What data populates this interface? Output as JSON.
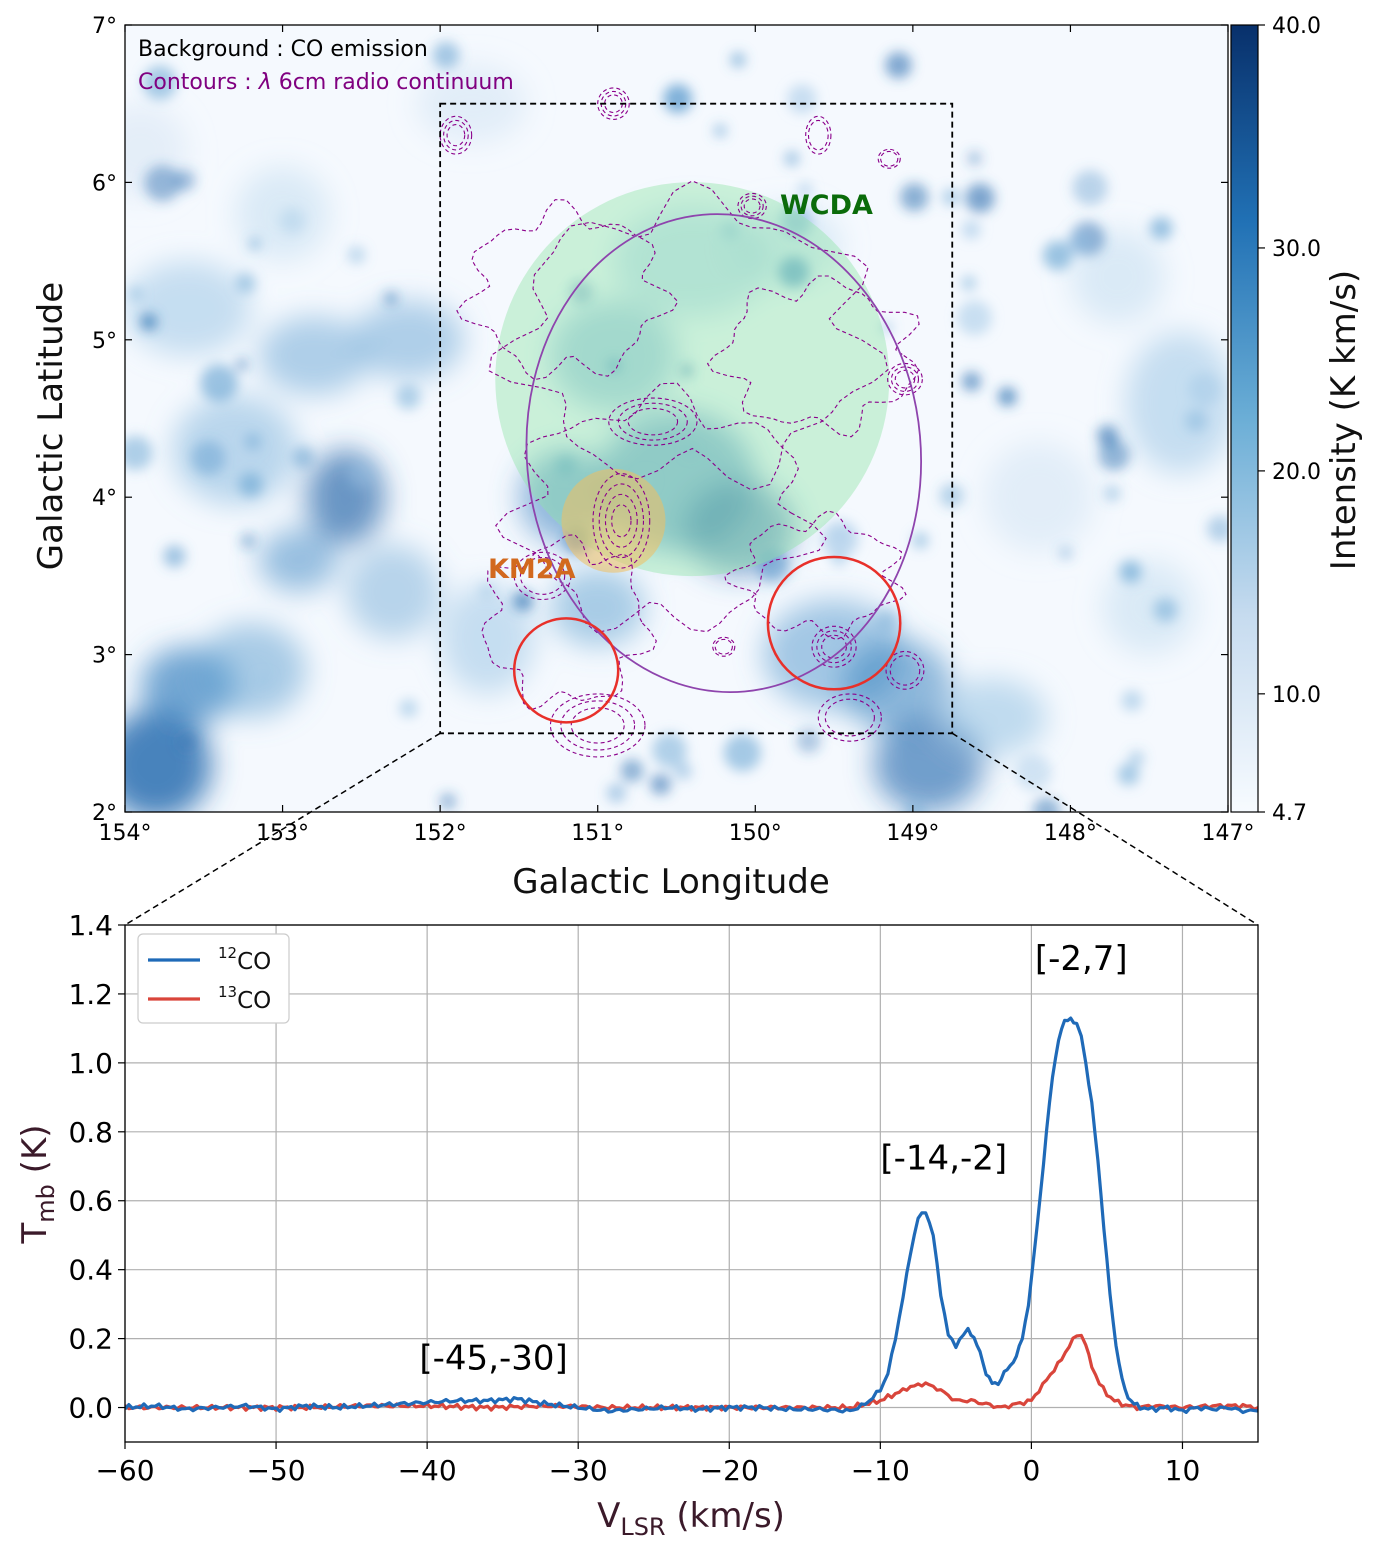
{
  "chart_data": [
    {
      "type": "heatmap",
      "panel": "top",
      "xlabel": "Galactic Longitude",
      "ylabel": "Galactic Latitude",
      "xlim": [
        154,
        147
      ],
      "ylim": [
        2,
        7
      ],
      "x_ticks": [
        154,
        153,
        152,
        151,
        150,
        149,
        148,
        147
      ],
      "y_ticks": [
        2,
        3,
        4,
        5,
        6,
        7
      ],
      "x_tick_labels": [
        "154°",
        "153°",
        "152°",
        "151°",
        "150°",
        "149°",
        "148°",
        "147°"
      ],
      "y_tick_labels": [
        "2°",
        "3°",
        "4°",
        "5°",
        "6°",
        "7°"
      ],
      "annotations": {
        "background_label": "Background : CO emission",
        "contours_label_prefix": "Contours : ",
        "contours_label_lambda": "λ",
        "contours_label_suffix": " 6cm radio continuum"
      },
      "colorbar": {
        "label": "Intensity (K km/s)",
        "range": [
          4.7,
          40.0
        ],
        "ticks": [
          4.7,
          10.0,
          20.0,
          30.0,
          40.0
        ],
        "tick_labels": [
          "4.7",
          "10.0",
          "20.0",
          "30.0",
          "40.0"
        ],
        "colormap": "Blues"
      },
      "zoom_box": {
        "l_range": [
          152.0,
          148.75
        ],
        "b_range": [
          2.5,
          6.5
        ]
      },
      "sources": [
        {
          "name": "WCDA",
          "center_l": 150.4,
          "center_b": 4.75,
          "radius_deg": 1.25,
          "color": "#90e4a8",
          "label_color": "#0a6b0a"
        },
        {
          "name": "KM2A",
          "center_l": 150.9,
          "center_b": 3.85,
          "radius_deg": 0.33,
          "color": "#f0c060",
          "label_color": "#d2691e"
        }
      ],
      "ellipse": {
        "center_l": 150.2,
        "center_b": 4.28,
        "semi_axes_deg": [
          1.25,
          1.52
        ],
        "color": "#8e44ad"
      },
      "red_circles": [
        {
          "center_l": 151.2,
          "center_b": 2.9,
          "radius_deg": 0.33
        },
        {
          "center_l": 149.5,
          "center_b": 3.2,
          "radius_deg": 0.42
        }
      ]
    },
    {
      "type": "line",
      "panel": "bottom",
      "xlabel": "V",
      "xlabel_sub": "LSR",
      "xlabel_unit": " (km/s)",
      "ylabel": "T",
      "ylabel_sub": "mb",
      "ylabel_unit": " (K)",
      "xlim": [
        -60,
        15
      ],
      "ylim": [
        -0.1,
        1.4
      ],
      "x_ticks": [
        -60,
        -50,
        -40,
        -30,
        -20,
        -10,
        0,
        10
      ],
      "x_tick_labels": [
        "−60",
        "−50",
        "−40",
        "−30",
        "−20",
        "−10",
        "0",
        "10"
      ],
      "y_ticks": [
        0.0,
        0.2,
        0.4,
        0.6,
        0.8,
        1.0,
        1.2,
        1.4
      ],
      "y_tick_labels": [
        "0.0",
        "0.2",
        "0.4",
        "0.6",
        "0.8",
        "1.0",
        "1.2",
        "1.4"
      ],
      "grid": true,
      "legend_position": "top-left",
      "annotations": [
        {
          "text": "[-2,7]",
          "x": 3.3,
          "y": 1.27
        },
        {
          "text": "[-14,-2]",
          "x": -5.8,
          "y": 0.69
        },
        {
          "text": "[-45,-30]",
          "x": -35.6,
          "y": 0.11
        }
      ],
      "series": [
        {
          "name_sup": "12",
          "name": "CO",
          "color": "#1f6ab8",
          "x": [
            -60,
            -58,
            -56,
            -54,
            -52,
            -50,
            -48,
            -46,
            -44,
            -42,
            -40,
            -38,
            -36,
            -34,
            -32,
            -30,
            -28,
            -26,
            -24,
            -22,
            -20,
            -18,
            -16,
            -14,
            -12,
            -11,
            -10,
            -9.5,
            -9,
            -8.5,
            -8,
            -7.5,
            -7,
            -6.5,
            -6,
            -5.5,
            -5,
            -4.5,
            -4.2,
            -3.8,
            -3.4,
            -3,
            -2.6,
            -2.2,
            -1.8,
            -1.4,
            -1,
            -0.6,
            -0.2,
            0.2,
            0.6,
            1,
            1.4,
            1.8,
            2.2,
            2.6,
            3,
            3.3,
            3.6,
            4,
            4.4,
            4.8,
            5.2,
            5.6,
            6,
            6.4,
            6.8,
            7.2,
            8,
            9,
            10,
            11,
            12,
            13,
            14,
            15
          ],
          "y": [
            0.0,
            0.005,
            -0.005,
            0.0,
            0.005,
            -0.005,
            0.005,
            0.0,
            0.005,
            0.01,
            0.015,
            0.02,
            0.02,
            0.025,
            0.01,
            0.0,
            -0.01,
            -0.005,
            0.0,
            -0.005,
            0.0,
            0.0,
            -0.005,
            -0.005,
            -0.01,
            0.01,
            0.05,
            0.1,
            0.2,
            0.32,
            0.45,
            0.55,
            0.57,
            0.5,
            0.33,
            0.21,
            0.18,
            0.21,
            0.23,
            0.2,
            0.16,
            0.1,
            0.07,
            0.07,
            0.1,
            0.12,
            0.15,
            0.2,
            0.3,
            0.45,
            0.62,
            0.8,
            0.96,
            1.07,
            1.12,
            1.13,
            1.11,
            1.08,
            1.0,
            0.88,
            0.72,
            0.52,
            0.33,
            0.18,
            0.08,
            0.03,
            0.01,
            0.0,
            -0.005,
            0.0,
            -0.01,
            0.0,
            -0.005,
            0.0,
            -0.01,
            -0.01
          ]
        },
        {
          "name_sup": "13",
          "name": "CO",
          "color": "#d9453b",
          "x": [
            -60,
            -56,
            -52,
            -48,
            -44,
            -40,
            -36,
            -32,
            -28,
            -24,
            -20,
            -16,
            -12,
            -10,
            -9,
            -8,
            -7,
            -6,
            -5,
            -4,
            -3,
            -2,
            -1,
            0,
            0.5,
            1,
            1.5,
            2,
            2.5,
            3,
            3.3,
            3.6,
            4,
            4.5,
            5,
            5.5,
            6,
            7,
            8,
            10,
            12,
            14,
            15
          ],
          "y": [
            0.0,
            0.0,
            0.0,
            0.0,
            0.005,
            0.005,
            0.0,
            0.005,
            0.0,
            0.0,
            0.0,
            0.0,
            0.0,
            0.02,
            0.04,
            0.06,
            0.07,
            0.05,
            0.02,
            0.02,
            0.01,
            0.0,
            0.01,
            0.02,
            0.05,
            0.08,
            0.11,
            0.14,
            0.18,
            0.21,
            0.21,
            0.18,
            0.12,
            0.07,
            0.04,
            0.02,
            0.01,
            0.0,
            0.005,
            0.0,
            0.005,
            0.005,
            0.0
          ]
        }
      ]
    }
  ]
}
